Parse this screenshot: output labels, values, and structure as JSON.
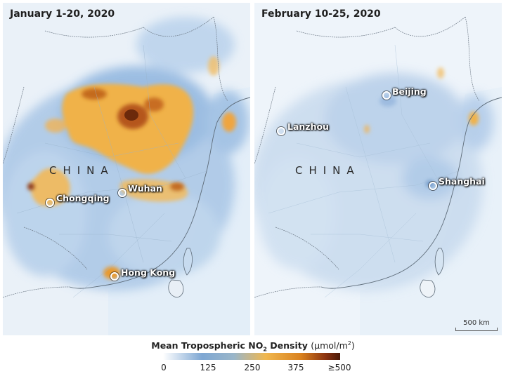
{
  "panels": [
    {
      "title": "January 1-20, 2020",
      "country_label": "CHINA",
      "cities": [
        "Wuhan",
        "Chongqing",
        "Hong Kong"
      ]
    },
    {
      "title": "February 10-25, 2020",
      "country_label": "CHINA",
      "cities": [
        "Beijing",
        "Lanzhou",
        "Shanghai"
      ]
    }
  ],
  "scale_bar": "500 km",
  "legend": {
    "title_prefix": "Mean Tropospheric NO",
    "title_sub": "2",
    "title_mid": " Density ",
    "title_units": "(µmol/m",
    "title_units_sup": "2",
    "title_units_end": ")",
    "ticks": [
      "0",
      "125",
      "250",
      "375",
      "≥500"
    ],
    "colors": [
      "#ffffff",
      "#7ea7d3",
      "#f0b74e",
      "#d9811f",
      "#4b1a08"
    ]
  }
}
